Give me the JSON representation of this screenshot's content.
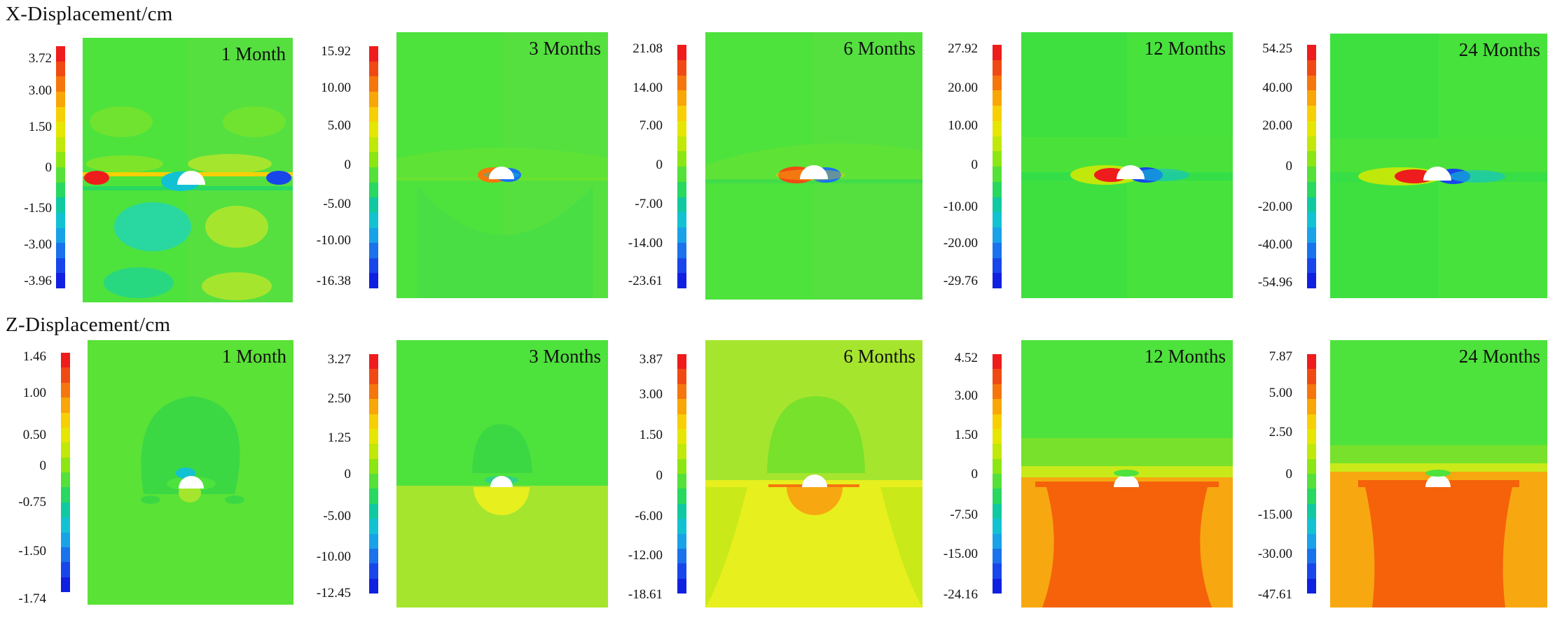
{
  "rows": [
    {
      "title": "X-Displacement/cm",
      "panels": [
        {
          "label": "1 Month",
          "ticks": [
            "3.72",
            "3.00",
            "1.50",
            "0",
            "-1.50",
            "-3.00",
            "-3.96"
          ]
        },
        {
          "label": "3 Months",
          "ticks": [
            "15.92",
            "10.00",
            "5.00",
            "0",
            "-5.00",
            "-10.00",
            "-16.38"
          ]
        },
        {
          "label": "6 Months",
          "ticks": [
            "21.08",
            "14.00",
            "7.00",
            "0",
            "-7.00",
            "-14.00",
            "-23.61"
          ]
        },
        {
          "label": "12 Months",
          "ticks": [
            "27.92",
            "20.00",
            "10.00",
            "0",
            "-10.00",
            "-20.00",
            "-29.76"
          ]
        },
        {
          "label": "24 Months",
          "ticks": [
            "54.25",
            "40.00",
            "20.00",
            "0",
            "-20.00",
            "-40.00",
            "-54.96"
          ]
        }
      ]
    },
    {
      "title": "Z-Displacement/cm",
      "panels": [
        {
          "label": "1 Month",
          "ticks": [
            "1.46",
            "1.00",
            "0.50",
            "0",
            "-0.75",
            "-1.50",
            "-1.74"
          ]
        },
        {
          "label": "3 Months",
          "ticks": [
            "3.27",
            "2.50",
            "1.25",
            "0",
            "-5.00",
            "-10.00",
            "-12.45"
          ]
        },
        {
          "label": "6 Months",
          "ticks": [
            "3.87",
            "3.00",
            "1.50",
            "0",
            "-6.00",
            "-12.00",
            "-18.61"
          ]
        },
        {
          "label": "12 Months",
          "ticks": [
            "4.52",
            "3.00",
            "1.50",
            "0",
            "-7.50",
            "-15.00",
            "-24.16"
          ]
        },
        {
          "label": "24 Months",
          "ticks": [
            "7.87",
            "5.00",
            "2.50",
            "0",
            "-15.00",
            "-30.00",
            "-47.61"
          ]
        }
      ]
    }
  ],
  "colors": {
    "scale": [
      "#ee1c1c",
      "#f04a14",
      "#f5760d",
      "#f8a608",
      "#f7cf06",
      "#e6e605",
      "#c0e80a",
      "#8ce614",
      "#55e03a",
      "#28d860",
      "#10c9a0",
      "#12c2d2",
      "#18a2e8",
      "#1a72ec",
      "#1846ea",
      "#1020e0"
    ],
    "field_green": "#4ee23c",
    "field_lime": "#a6e52e",
    "field_yellow": "#e8ef1e",
    "field_orange": "#f7a810",
    "field_deep_orange": "#f5620a"
  }
}
